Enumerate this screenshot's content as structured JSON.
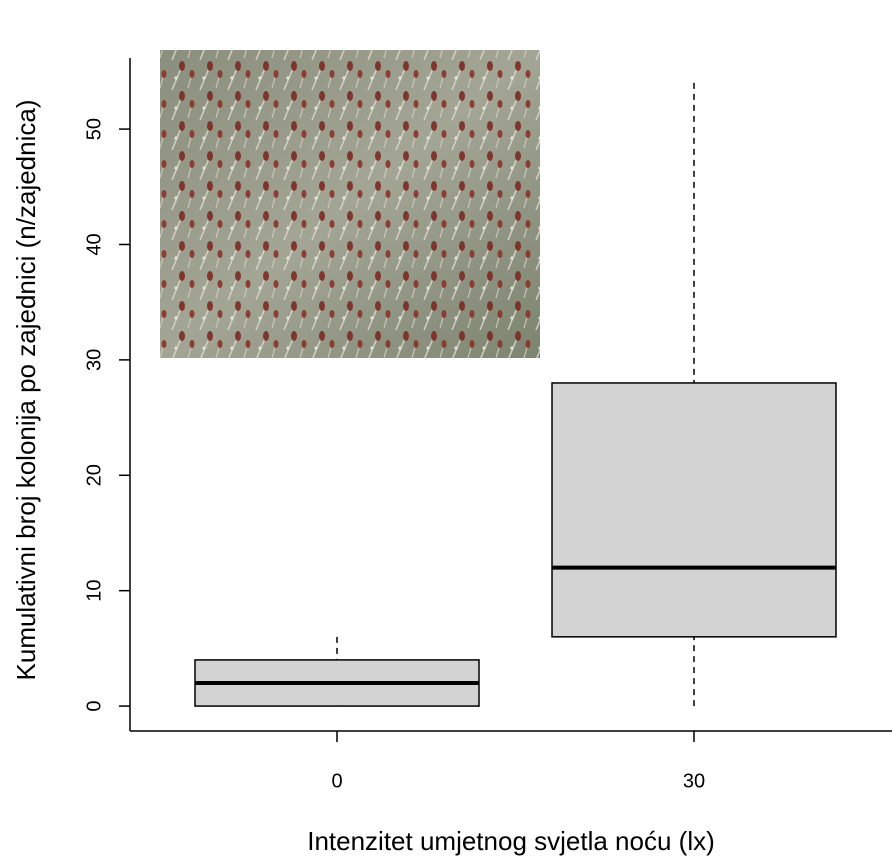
{
  "chart_data": {
    "type": "boxplot",
    "x_label": "Intenzitet umjetnog svjetla noću (lx)",
    "y_label": "Kumulativni broj kolonija po zajednici (n/zajednica)",
    "categories": [
      "0",
      "30"
    ],
    "boxes": [
      {
        "min": 0,
        "q1": 0,
        "median": 2,
        "q3": 4,
        "max": 6
      },
      {
        "min": 0,
        "q1": 6,
        "median": 12,
        "q3": 28,
        "max": 54
      }
    ],
    "color": "#d3d3d3",
    "ylim": [
      -2.16,
      56.16
    ],
    "yticks": [
      0,
      10,
      20,
      30,
      40,
      50
    ]
  }
}
